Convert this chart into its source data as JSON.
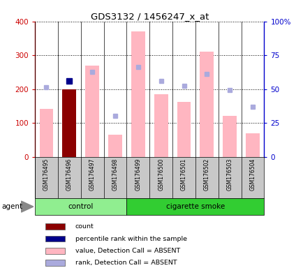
{
  "title": "GDS3132 / 1456247_x_at",
  "samples": [
    "GSM176495",
    "GSM176496",
    "GSM176497",
    "GSM176498",
    "GSM176499",
    "GSM176500",
    "GSM176501",
    "GSM176502",
    "GSM176503",
    "GSM176504"
  ],
  "values_absent": [
    142,
    200,
    270,
    65,
    370,
    185,
    162,
    310,
    120,
    70
  ],
  "ranks_absent": [
    205,
    null,
    250,
    120,
    265,
    225,
    210,
    245,
    197,
    148
  ],
  "count_value": 200,
  "count_idx": 1,
  "percentile_value": 225,
  "percentile_idx": 1,
  "ylim_left": [
    0,
    400
  ],
  "ylim_right": [
    0,
    100
  ],
  "yticks_left": [
    0,
    100,
    200,
    300,
    400
  ],
  "yticks_right": [
    0,
    25,
    50,
    75,
    100
  ],
  "yticklabels_right": [
    "0",
    "25",
    "50",
    "75",
    "100%"
  ],
  "bar_color_absent": "#FFB6C1",
  "bar_color_count": "#8B0000",
  "marker_color_percentile": "#00008B",
  "marker_color_rank": "#AAAADD",
  "group_control_color": "#90EE90",
  "group_smoke_color": "#32CD32",
  "group_bg_color": "#C8C8C8",
  "axis_left_color": "#CC0000",
  "axis_right_color": "#0000CC",
  "legend_labels": [
    "count",
    "percentile rank within the sample",
    "value, Detection Call = ABSENT",
    "rank, Detection Call = ABSENT"
  ],
  "legend_colors": [
    "#8B0000",
    "#00008B",
    "#FFB6C1",
    "#AAAADD"
  ]
}
